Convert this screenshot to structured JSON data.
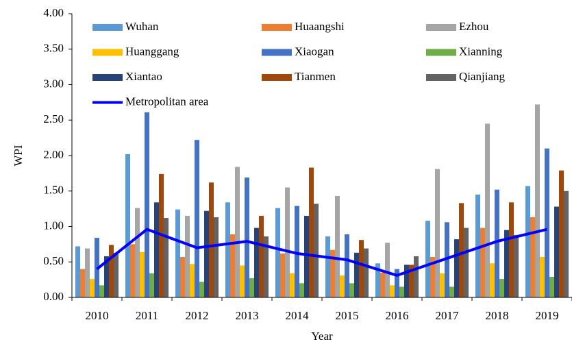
{
  "chart_data": {
    "type": "bar",
    "x_label": "Year",
    "y_label": "WPI",
    "categories": [
      "2010",
      "2011",
      "2012",
      "2013",
      "2014",
      "2015",
      "2016",
      "2017",
      "2018",
      "2019"
    ],
    "ylim": [
      0,
      4
    ],
    "yticks": [
      {
        "value": 0,
        "label": "0.00"
      },
      {
        "value": 0.5,
        "label": "0.50"
      },
      {
        "value": 1,
        "label": "1.00"
      },
      {
        "value": 1.5,
        "label": "1.50"
      },
      {
        "value": 2,
        "label": "2.00"
      },
      {
        "value": 2.5,
        "label": "2.50"
      },
      {
        "value": 3,
        "label": "3.00"
      },
      {
        "value": 3.5,
        "label": "3.50"
      },
      {
        "value": 4,
        "label": "4.00"
      }
    ],
    "series": [
      {
        "name": "Wuhan",
        "color": "#5b9bd5",
        "values": [
          0.72,
          2.02,
          1.24,
          1.34,
          1.26,
          0.86,
          0.48,
          1.08,
          1.45,
          1.57
        ]
      },
      {
        "name": "Huaangshi",
        "color": "#ed7d31",
        "values": [
          0.4,
          0.75,
          0.57,
          0.89,
          0.62,
          0.67,
          0.35,
          0.57,
          0.98,
          1.13
        ]
      },
      {
        "name": "Ezhou",
        "color": "#a5a5a5",
        "values": [
          0.69,
          1.26,
          1.15,
          1.84,
          1.55,
          1.43,
          0.77,
          1.81,
          2.45,
          2.72
        ]
      },
      {
        "name": "Huanggang",
        "color": "#ffc000",
        "values": [
          0.26,
          0.64,
          0.47,
          0.45,
          0.34,
          0.31,
          0.17,
          0.34,
          0.48,
          0.57
        ]
      },
      {
        "name": "Xiaogan",
        "color": "#4472c4",
        "values": [
          0.84,
          2.61,
          2.22,
          1.69,
          1.29,
          0.89,
          0.4,
          1.06,
          1.52,
          2.1
        ]
      },
      {
        "name": "Xianning",
        "color": "#70ad47",
        "values": [
          0.17,
          0.34,
          0.22,
          0.27,
          0.2,
          0.2,
          0.15,
          0.15,
          0.26,
          0.29
        ]
      },
      {
        "name": "Xiantao",
        "color": "#264478",
        "values": [
          0.58,
          1.34,
          1.22,
          0.98,
          1.15,
          0.63,
          0.46,
          0.82,
          0.95,
          1.28
        ]
      },
      {
        "name": "Tianmen",
        "color": "#9e480e",
        "values": [
          0.74,
          1.74,
          1.62,
          1.15,
          1.83,
          0.81,
          0.46,
          1.33,
          1.34,
          1.79
        ]
      },
      {
        "name": "Qianjiang",
        "color": "#636363",
        "values": [
          0.63,
          1.12,
          1.13,
          0.86,
          1.32,
          0.69,
          0.58,
          0.98,
          0.88,
          1.5
        ]
      },
      {
        "name": "Metropolitan area",
        "color": "#0000ff",
        "type": "line",
        "values": [
          0.4,
          0.96,
          0.7,
          0.79,
          0.62,
          0.53,
          0.31,
          0.55,
          0.79,
          0.96
        ]
      }
    ]
  }
}
